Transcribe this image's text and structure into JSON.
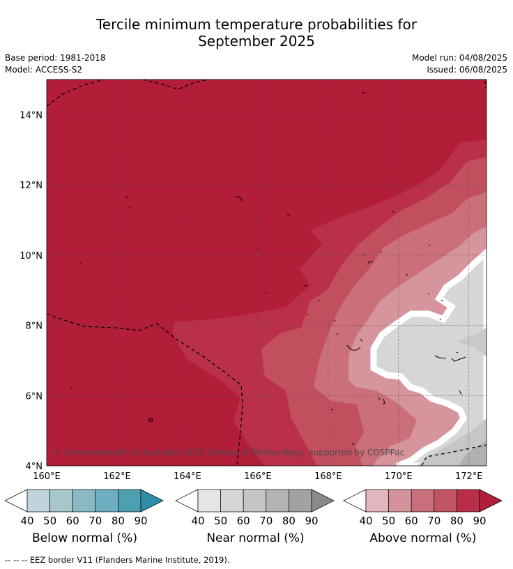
{
  "title": {
    "line1": "Tercile minimum temperature probabilities for",
    "line2": "September 2025"
  },
  "meta": {
    "base_period": "Base period: 1981-2018",
    "model": "Model: ACCESS-S2",
    "model_run": "Model run: 04/08/2025",
    "issued": "Issued: 06/08/2025"
  },
  "map": {
    "x_axis_labels": [
      "160°E",
      "162°E",
      "164°E",
      "166°E",
      "168°E",
      "170°E",
      "172°E"
    ],
    "y_axis_labels": [
      "4°N",
      "6°N",
      "8°N",
      "10°N",
      "12°N",
      "14°N"
    ],
    "lon_range": [
      160,
      172.5
    ],
    "lat_range": [
      4,
      15
    ],
    "copyright": "© Commonwealth of Australia 2025, Bureau of Meteorology, supported by COSPPac",
    "background_color": "#b21d38"
  },
  "colorbars": [
    {
      "id": "below",
      "label": "Below normal (%)",
      "ticks": [
        "40",
        "50",
        "60",
        "70",
        "80",
        "90"
      ],
      "colors": [
        "#ffffff",
        "#bfd4db",
        "#a6c7cc",
        "#8ab9c4",
        "#6daec0",
        "#4da0b2",
        "#2e8ea6"
      ]
    },
    {
      "id": "near",
      "label": "Near normal (%)",
      "ticks": [
        "40",
        "50",
        "60",
        "70",
        "80",
        "90"
      ],
      "colors": [
        "#ffffff",
        "#e6e6e6",
        "#d6d6d6",
        "#c5c5c5",
        "#b4b4b4",
        "#a2a2a2",
        "#8a8a8a"
      ]
    },
    {
      "id": "above",
      "label": "Above normal (%)",
      "ticks": [
        "40",
        "50",
        "60",
        "70",
        "80",
        "90"
      ],
      "colors": [
        "#ffffff",
        "#e1b7bd",
        "#d4939c",
        "#c96f7c",
        "#c05460",
        "#b82e48",
        "#b21d38"
      ]
    }
  ],
  "footnote": "--  --  -- EEZ border V11 (Flanders Marine Institute, 2019)."
}
